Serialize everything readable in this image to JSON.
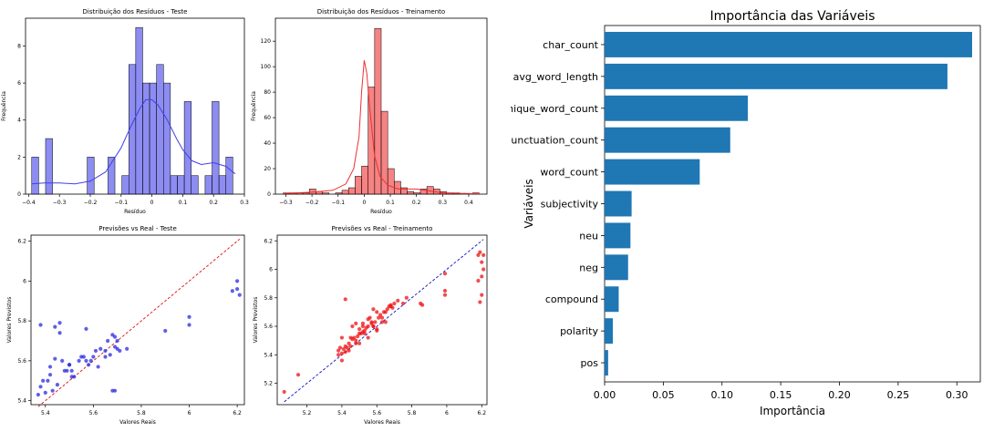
{
  "chart_data": [
    {
      "type": "bar",
      "subtype": "histogram-with-kde",
      "title": "Distribuição dos Resíduos - Teste",
      "xlabel": "Resíduo",
      "ylabel": "Frequência",
      "xlim": [
        -0.41,
        0.3
      ],
      "ylim": [
        0,
        9.5
      ],
      "xticks": [
        -0.4,
        -0.3,
        -0.2,
        -0.1,
        0.0,
        0.1,
        0.2,
        0.3
      ],
      "yticks": [
        0,
        2,
        4,
        6,
        8
      ],
      "bin_edges": [
        -0.39,
        -0.3675,
        -0.345,
        -0.3225,
        -0.3,
        -0.2775,
        -0.255,
        -0.2325,
        -0.21,
        -0.1875,
        -0.165,
        -0.1425,
        -0.12,
        -0.0975,
        -0.075,
        -0.0525,
        -0.03,
        -0.0075,
        0.015,
        0.0375,
        0.06,
        0.0825,
        0.105,
        0.1275,
        0.15,
        0.1725,
        0.195,
        0.2175,
        0.24,
        0.2625,
        0.285
      ],
      "counts": [
        2,
        0,
        3,
        0,
        0,
        0,
        0,
        0,
        2,
        0,
        0,
        2,
        0,
        1,
        7,
        9,
        6,
        6,
        7,
        6,
        1,
        1,
        5,
        1,
        0,
        1,
        5,
        1,
        2,
        0
      ],
      "kde_x": [
        -0.39,
        -0.35,
        -0.3,
        -0.25,
        -0.2,
        -0.15,
        -0.1,
        -0.07,
        -0.04,
        -0.02,
        0.0,
        0.02,
        0.05,
        0.08,
        0.1,
        0.13,
        0.16,
        0.2,
        0.24,
        0.27
      ],
      "kde_y": [
        0.55,
        0.6,
        0.6,
        0.55,
        0.7,
        1.2,
        2.5,
        3.6,
        4.6,
        5.1,
        5.1,
        4.8,
        4.0,
        3.0,
        2.4,
        1.8,
        1.6,
        1.7,
        1.5,
        1.1
      ],
      "color": "#4040e8"
    },
    {
      "type": "bar",
      "subtype": "histogram-with-kde",
      "title": "Distribuição dos Resíduos - Treinamento",
      "xlabel": "Resíduo",
      "ylabel": "Frequência",
      "xlim": [
        -0.34,
        0.47
      ],
      "ylim": [
        0,
        138
      ],
      "xticks": [
        -0.3,
        -0.2,
        -0.1,
        0.0,
        0.1,
        0.2,
        0.3,
        0.4
      ],
      "yticks": [
        0,
        20,
        40,
        60,
        80,
        100,
        120
      ],
      "bin_edges": [
        -0.31,
        -0.285,
        -0.26,
        -0.235,
        -0.21,
        -0.185,
        -0.16,
        -0.135,
        -0.11,
        -0.085,
        -0.06,
        -0.035,
        -0.01,
        0.015,
        0.04,
        0.065,
        0.09,
        0.115,
        0.14,
        0.165,
        0.19,
        0.215,
        0.24,
        0.265,
        0.29,
        0.315,
        0.34,
        0.365,
        0.39,
        0.415,
        0.44
      ],
      "counts": [
        1,
        1,
        1,
        1,
        4,
        2,
        1,
        0,
        1,
        3,
        5,
        14,
        22,
        84,
        130,
        65,
        20,
        10,
        5,
        2,
        1,
        4,
        6,
        4,
        2,
        1,
        1,
        0,
        0,
        1
      ],
      "kde_x": [
        -0.31,
        -0.2,
        -0.12,
        -0.07,
        -0.04,
        -0.02,
        -0.01,
        0.0,
        0.01,
        0.02,
        0.04,
        0.06,
        0.09,
        0.13,
        0.2,
        0.3,
        0.44
      ],
      "kde_y": [
        0.5,
        1.5,
        3,
        8,
        20,
        45,
        80,
        105,
        95,
        70,
        30,
        14,
        7,
        4,
        4,
        1,
        0.3
      ],
      "color": "#ee3030"
    },
    {
      "type": "scatter",
      "title": "Previsões vs Real - Teste",
      "xlabel": "Valores Reais",
      "ylabel": "Valores Previstos",
      "xlim": [
        5.34,
        6.23
      ],
      "ylim": [
        5.38,
        6.23
      ],
      "xticks": [
        5.4,
        5.6,
        5.8,
        6.0,
        6.2
      ],
      "yticks": [
        5.4,
        5.6,
        5.8,
        6.0,
        6.2
      ],
      "reference_line": "y = x",
      "point_color": "#2a2ae0",
      "line_color": "#e01010",
      "x": [
        5.37,
        5.38,
        5.38,
        5.39,
        5.4,
        5.41,
        5.42,
        5.42,
        5.43,
        5.44,
        5.44,
        5.45,
        5.46,
        5.46,
        5.47,
        5.48,
        5.49,
        5.5,
        5.5,
        5.51,
        5.51,
        5.52,
        5.54,
        5.55,
        5.56,
        5.57,
        5.57,
        5.58,
        5.59,
        5.6,
        5.61,
        5.62,
        5.63,
        5.65,
        5.65,
        5.66,
        5.67,
        5.68,
        5.68,
        5.69,
        5.69,
        5.69,
        5.7,
        5.7,
        5.71,
        5.74,
        5.9,
        6.0,
        6.0,
        6.2,
        6.2,
        6.18,
        6.21
      ],
      "y": [
        5.43,
        5.47,
        5.78,
        5.5,
        5.44,
        5.5,
        5.57,
        5.53,
        5.45,
        5.77,
        5.61,
        5.48,
        5.74,
        5.79,
        5.6,
        5.55,
        5.55,
        5.58,
        5.58,
        5.55,
        5.52,
        5.52,
        5.6,
        5.62,
        5.62,
        5.76,
        5.6,
        5.58,
        5.6,
        5.62,
        5.65,
        5.57,
        5.66,
        5.65,
        5.62,
        5.7,
        5.63,
        5.45,
        5.73,
        5.67,
        5.72,
        5.45,
        5.7,
        5.66,
        5.65,
        5.66,
        5.75,
        5.82,
        5.78,
        6.0,
        5.96,
        5.95,
        5.93
      ]
    },
    {
      "type": "scatter",
      "title": "Previsões vs Real - Treinamento",
      "xlabel": "Valores Reais",
      "ylabel": "Valores Previstos",
      "xlim": [
        5.03,
        6.23
      ],
      "ylim": [
        5.05,
        6.24
      ],
      "xticks": [
        5.2,
        5.4,
        5.6,
        5.8,
        6.0,
        6.2
      ],
      "yticks": [
        5.2,
        5.4,
        5.6,
        5.8,
        6.0,
        6.2
      ],
      "reference_line": "y = x",
      "point_color": "#ee1010",
      "line_color": "#1010c0",
      "x": [
        5.07,
        5.15,
        5.38,
        5.38,
        5.39,
        5.4,
        5.4,
        5.41,
        5.42,
        5.42,
        5.43,
        5.44,
        5.45,
        5.46,
        5.46,
        5.47,
        5.48,
        5.48,
        5.49,
        5.5,
        5.5,
        5.51,
        5.52,
        5.52,
        5.53,
        5.54,
        5.55,
        5.55,
        5.56,
        5.57,
        5.58,
        5.58,
        5.59,
        5.6,
        5.6,
        5.61,
        5.62,
        5.63,
        5.64,
        5.65,
        5.65,
        5.66,
        5.67,
        5.68,
        5.69,
        5.7,
        5.72,
        5.75,
        5.77,
        5.85,
        5.86,
        5.99,
        5.99,
        5.99,
        6.18,
        6.18,
        6.19,
        6.2,
        6.2,
        6.21,
        6.21,
        6.19,
        6.2,
        5.4,
        5.45,
        5.5,
        5.55,
        5.6,
        5.42,
        5.48,
        5.53,
        5.58,
        5.63,
        5.68,
        5.44,
        5.52,
        5.57
      ],
      "y": [
        5.14,
        5.26,
        5.4,
        5.43,
        5.45,
        5.41,
        5.52,
        5.44,
        5.46,
        5.79,
        5.45,
        5.48,
        5.52,
        5.51,
        5.6,
        5.52,
        5.5,
        5.62,
        5.53,
        5.55,
        5.58,
        5.55,
        5.56,
        5.62,
        5.57,
        5.59,
        5.6,
        5.65,
        5.66,
        5.62,
        5.6,
        5.72,
        5.63,
        5.7,
        5.58,
        5.66,
        5.68,
        5.66,
        5.7,
        5.7,
        5.63,
        5.72,
        5.74,
        5.75,
        5.73,
        5.76,
        5.78,
        5.76,
        5.8,
        5.76,
        5.75,
        5.97,
        5.85,
        5.82,
        6.1,
        5.92,
        6.12,
        6.05,
        5.95,
        6.1,
        6.0,
        5.77,
        5.82,
        5.36,
        5.46,
        5.48,
        5.52,
        5.57,
        5.42,
        5.48,
        5.55,
        5.6,
        5.63,
        5.74,
        5.43,
        5.6,
        5.63
      ]
    },
    {
      "type": "bar",
      "orientation": "horizontal",
      "title": "Importância das Variáveis",
      "xlabel": "Importância",
      "ylabel": "Variáveis",
      "xlim": [
        0,
        0.32
      ],
      "xticks": [
        0.0,
        0.05,
        0.1,
        0.15,
        0.2,
        0.25,
        0.3
      ],
      "tick_labels": [
        "0.00",
        "0.05",
        "0.10",
        "0.15",
        "0.20",
        "0.25",
        "0.30"
      ],
      "color": "#1f77b4",
      "categories": [
        "char_count",
        "avg_word_length",
        "unique_word_count",
        "punctuation_count",
        "word_count",
        "subjectivity",
        "neu",
        "neg",
        "compound",
        "polarity",
        "pos"
      ],
      "values": [
        0.313,
        0.292,
        0.122,
        0.107,
        0.081,
        0.023,
        0.022,
        0.02,
        0.012,
        0.007,
        0.003
      ]
    }
  ]
}
